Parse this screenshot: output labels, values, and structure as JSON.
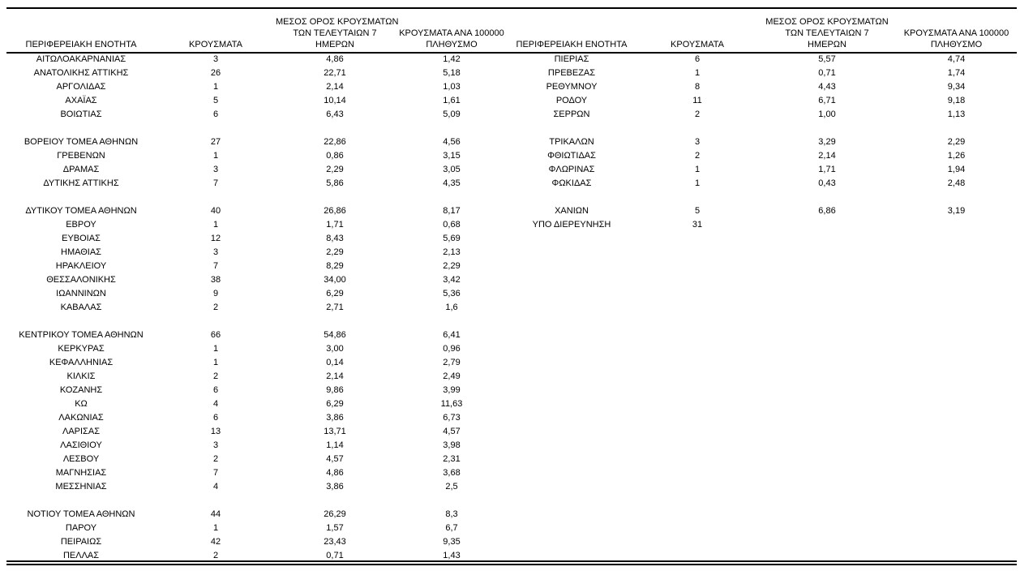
{
  "page": {
    "background_color": "#ffffff",
    "text_color": "#000000",
    "rule_color": "#000000"
  },
  "header": {
    "entity": "ΠΕΡΙΦΕΡΕΙΑΚΗ ΕΝΟΤΗΤΑ",
    "cases": "ΚΡΟΥΣΜΑΤΑ",
    "avg7_line1": "ΜΕΣΟΣ ΟΡΟΣ ΚΡΟΥΣΜΑΤΩΝ",
    "avg7_line2": "ΤΩΝ ΤΕΛΕΥΤΑΙΩΝ 7",
    "avg7_line3": "ΗΜΕΡΩΝ",
    "per100k_line1": "ΚΡΟΥΣΜΑΤΑ ΑΝΑ 100000",
    "per100k_line2": "ΠΛΗΘΥΣΜΟ"
  },
  "left_table": {
    "rows": [
      {
        "entity": "ΑΙΤΩΛΟΑΚΑΡΝΑΝΙΑΣ",
        "cases": "3",
        "avg7": "4,86",
        "per100k": "1,42"
      },
      {
        "entity": "ΑΝΑΤΟΛΙΚΗΣ ΑΤΤΙΚΗΣ",
        "cases": "26",
        "avg7": "22,71",
        "per100k": "5,18"
      },
      {
        "entity": "ΑΡΓΟΛΙΔΑΣ",
        "cases": "1",
        "avg7": "2,14",
        "per100k": "1,03"
      },
      {
        "entity": "ΑΧΑΪΑΣ",
        "cases": "5",
        "avg7": "10,14",
        "per100k": "1,61"
      },
      {
        "entity": "ΒΟΙΩΤΙΑΣ",
        "cases": "6",
        "avg7": "6,43",
        "per100k": "5,09"
      },
      {
        "entity": "",
        "cases": "",
        "avg7": "",
        "per100k": ""
      },
      {
        "entity": "ΒΟΡΕΙΟΥ ΤΟΜΕΑ ΑΘΗΝΩΝ",
        "cases": "27",
        "avg7": "22,86",
        "per100k": "4,56"
      },
      {
        "entity": "ΓΡΕΒΕΝΩΝ",
        "cases": "1",
        "avg7": "0,86",
        "per100k": "3,15"
      },
      {
        "entity": "ΔΡΑΜΑΣ",
        "cases": "3",
        "avg7": "2,29",
        "per100k": "3,05"
      },
      {
        "entity": "ΔΥΤΙΚΗΣ ΑΤΤΙΚΗΣ",
        "cases": "7",
        "avg7": "5,86",
        "per100k": "4,35"
      },
      {
        "entity": "",
        "cases": "",
        "avg7": "",
        "per100k": ""
      },
      {
        "entity": "ΔΥΤΙΚΟΥ ΤΟΜΕΑ ΑΘΗΝΩΝ",
        "cases": "40",
        "avg7": "26,86",
        "per100k": "8,17"
      },
      {
        "entity": "ΕΒΡΟΥ",
        "cases": "1",
        "avg7": "1,71",
        "per100k": "0,68"
      },
      {
        "entity": "ΕΥΒΟΙΑΣ",
        "cases": "12",
        "avg7": "8,43",
        "per100k": "5,69"
      },
      {
        "entity": "ΗΜΑΘΙΑΣ",
        "cases": "3",
        "avg7": "2,29",
        "per100k": "2,13"
      },
      {
        "entity": "ΗΡΑΚΛΕΙΟΥ",
        "cases": "7",
        "avg7": "8,29",
        "per100k": "2,29"
      },
      {
        "entity": "ΘΕΣΣΑΛΟΝΙΚΗΣ",
        "cases": "38",
        "avg7": "34,00",
        "per100k": "3,42"
      },
      {
        "entity": "ΙΩΑΝΝΙΝΩΝ",
        "cases": "9",
        "avg7": "6,29",
        "per100k": "5,36"
      },
      {
        "entity": "ΚΑΒΑΛΑΣ",
        "cases": "2",
        "avg7": "2,71",
        "per100k": "1,6"
      },
      {
        "entity": "",
        "cases": "",
        "avg7": "",
        "per100k": ""
      },
      {
        "entity": "ΚΕΝΤΡΙΚΟΥ ΤΟΜΕΑ ΑΘΗΝΩΝ",
        "cases": "66",
        "avg7": "54,86",
        "per100k": "6,41"
      },
      {
        "entity": "ΚΕΡΚΥΡΑΣ",
        "cases": "1",
        "avg7": "3,00",
        "per100k": "0,96"
      },
      {
        "entity": "ΚΕΦΑΛΛΗΝΙΑΣ",
        "cases": "1",
        "avg7": "0,14",
        "per100k": "2,79"
      },
      {
        "entity": "ΚΙΛΚΙΣ",
        "cases": "2",
        "avg7": "2,14",
        "per100k": "2,49"
      },
      {
        "entity": "ΚΟΖΑΝΗΣ",
        "cases": "6",
        "avg7": "9,86",
        "per100k": "3,99"
      },
      {
        "entity": "ΚΩ",
        "cases": "4",
        "avg7": "6,29",
        "per100k": "11,63"
      },
      {
        "entity": "ΛΑΚΩΝΙΑΣ",
        "cases": "6",
        "avg7": "3,86",
        "per100k": "6,73"
      },
      {
        "entity": "ΛΑΡΙΣΑΣ",
        "cases": "13",
        "avg7": "13,71",
        "per100k": "4,57"
      },
      {
        "entity": "ΛΑΣΙΘΙΟΥ",
        "cases": "3",
        "avg7": "1,14",
        "per100k": "3,98"
      },
      {
        "entity": "ΛΕΣΒΟΥ",
        "cases": "2",
        "avg7": "4,57",
        "per100k": "2,31"
      },
      {
        "entity": "ΜΑΓΝΗΣΙΑΣ",
        "cases": "7",
        "avg7": "4,86",
        "per100k": "3,68"
      },
      {
        "entity": "ΜΕΣΣΗΝΙΑΣ",
        "cases": "4",
        "avg7": "3,86",
        "per100k": "2,5"
      },
      {
        "entity": "",
        "cases": "",
        "avg7": "",
        "per100k": ""
      },
      {
        "entity": "ΝΟΤΙΟΥ ΤΟΜΕΑ ΑΘΗΝΩΝ",
        "cases": "44",
        "avg7": "26,29",
        "per100k": "8,3"
      },
      {
        "entity": "ΠΑΡΟΥ",
        "cases": "1",
        "avg7": "1,57",
        "per100k": "6,7"
      },
      {
        "entity": "ΠΕΙΡΑΙΩΣ",
        "cases": "42",
        "avg7": "23,43",
        "per100k": "9,35"
      },
      {
        "entity": "ΠΕΛΛΑΣ",
        "cases": "2",
        "avg7": "0,71",
        "per100k": "1,43"
      }
    ]
  },
  "right_table": {
    "rows": [
      {
        "entity": "ΠΙΕΡΙΑΣ",
        "cases": "6",
        "avg7": "5,57",
        "per100k": "4,74"
      },
      {
        "entity": "ΠΡΕΒΕΖΑΣ",
        "cases": "1",
        "avg7": "0,71",
        "per100k": "1,74"
      },
      {
        "entity": "ΡΕΘΥΜΝΟΥ",
        "cases": "8",
        "avg7": "4,43",
        "per100k": "9,34"
      },
      {
        "entity": "ΡΟΔΟΥ",
        "cases": "11",
        "avg7": "6,71",
        "per100k": "9,18"
      },
      {
        "entity": "ΣΕΡΡΩΝ",
        "cases": "2",
        "avg7": "1,00",
        "per100k": "1,13"
      },
      {
        "entity": "",
        "cases": "",
        "avg7": "",
        "per100k": ""
      },
      {
        "entity": "ΤΡΙΚΑΛΩΝ",
        "cases": "3",
        "avg7": "3,29",
        "per100k": "2,29"
      },
      {
        "entity": "ΦΘΙΩΤΙΔΑΣ",
        "cases": "2",
        "avg7": "2,14",
        "per100k": "1,26"
      },
      {
        "entity": "ΦΛΩΡΙΝΑΣ",
        "cases": "1",
        "avg7": "1,71",
        "per100k": "1,94"
      },
      {
        "entity": "ΦΩΚΙΔΑΣ",
        "cases": "1",
        "avg7": "0,43",
        "per100k": "2,48"
      },
      {
        "entity": "",
        "cases": "",
        "avg7": "",
        "per100k": ""
      },
      {
        "entity": "ΧΑΝΙΩΝ",
        "cases": "5",
        "avg7": "6,86",
        "per100k": "3,19"
      },
      {
        "entity": "ΥΠΟ ΔΙΕΡΕΥΝΗΣΗ",
        "cases": "31",
        "avg7": "",
        "per100k": ""
      }
    ]
  }
}
